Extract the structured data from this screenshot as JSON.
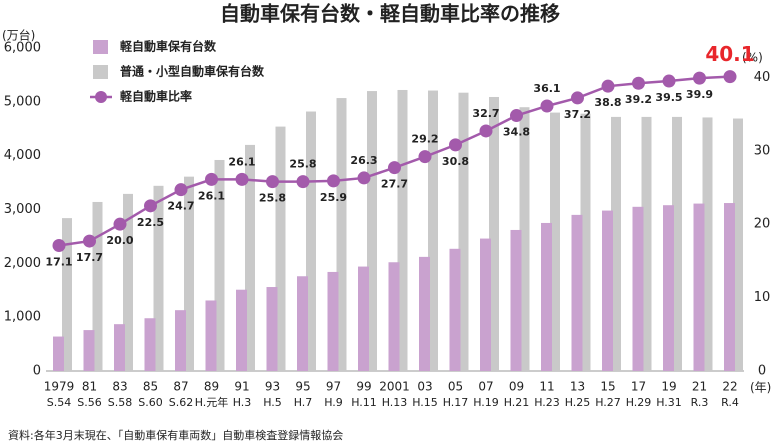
{
  "chart_data": {
    "type": "bar",
    "title": "自動車保有台数・軽自動車比率の推移",
    "y_unit": "(万台)",
    "y2_unit": "(%)",
    "x_unit": "(年)",
    "source": "資料:各年3月末現在、「自動車保有車両数」自動車検査登録情報協会",
    "categories": [
      "1979",
      "81",
      "83",
      "85",
      "87",
      "89",
      "91",
      "93",
      "95",
      "97",
      "99",
      "2001",
      "03",
      "05",
      "07",
      "09",
      "11",
      "13",
      "15",
      "17",
      "19",
      "21",
      "22"
    ],
    "categories_era": [
      "S.54",
      "S.56",
      "S.58",
      "S.60",
      "S.62",
      "H.元年",
      "H.3",
      "H.5",
      "H.7",
      "H.9",
      "H.11",
      "H.13",
      "H.15",
      "H.17",
      "H.19",
      "H.21",
      "H.23",
      "H.25",
      "H.27",
      "H.29",
      "H.31",
      "R.3",
      "R.4"
    ],
    "ylim": [
      0,
      6000
    ],
    "yticks": [
      0,
      {
        "value": 1000,
        "label": "1,000"
      },
      {
        "value": 2000,
        "label": "2,000"
      },
      {
        "value": 3000,
        "label": "3,000"
      },
      {
        "value": 4000,
        "label": "4,000"
      },
      {
        "value": 5000,
        "label": "5,000"
      },
      {
        "value": 6000,
        "label": "6,000"
      }
    ],
    "y2lim": [
      0,
      44
    ],
    "y2ticks": [
      0,
      10,
      20,
      30,
      40
    ],
    "legend": "upper left",
    "highlight_color": "#e8262b",
    "series": [
      {
        "name": "軽自動車保有台数",
        "color": "#c9a2cf",
        "values": [
          640,
          760,
          870,
          980,
          1130,
          1310,
          1510,
          1560,
          1760,
          1840,
          1940,
          2020,
          2120,
          2270,
          2460,
          2620,
          2750,
          2900,
          2980,
          3050,
          3080,
          3110,
          3120
        ]
      },
      {
        "name": "普通・小型自動車保有台数",
        "color": "#c9c9c9",
        "values": [
          2840,
          3140,
          3290,
          3440,
          3610,
          3920,
          4200,
          4540,
          4820,
          5070,
          5200,
          5220,
          5210,
          5170,
          5090,
          4900,
          4800,
          4780,
          4720,
          4720,
          4720,
          4710,
          4690
        ]
      },
      {
        "name": "軽自動車比率",
        "color": "#a35aab",
        "type": "line",
        "axis": "y2",
        "values": [
          17.1,
          17.7,
          20.0,
          22.5,
          24.7,
          26.1,
          26.1,
          25.8,
          25.8,
          25.9,
          26.3,
          27.7,
          29.2,
          30.8,
          32.7,
          34.8,
          36.1,
          37.2,
          38.8,
          39.2,
          39.5,
          39.9,
          40.1
        ],
        "value_labels": [
          "17.1",
          "17.7",
          "20.0",
          "22.5",
          "24.7",
          "26.1",
          "26.1",
          "25.8",
          "25.8",
          "25.9",
          "26.3",
          "27.7",
          "29.2",
          "30.8",
          "32.7",
          "34.8",
          "36.1",
          "37.2",
          "38.8",
          "39.2",
          "39.5",
          "39.9",
          "40.1"
        ]
      }
    ]
  }
}
